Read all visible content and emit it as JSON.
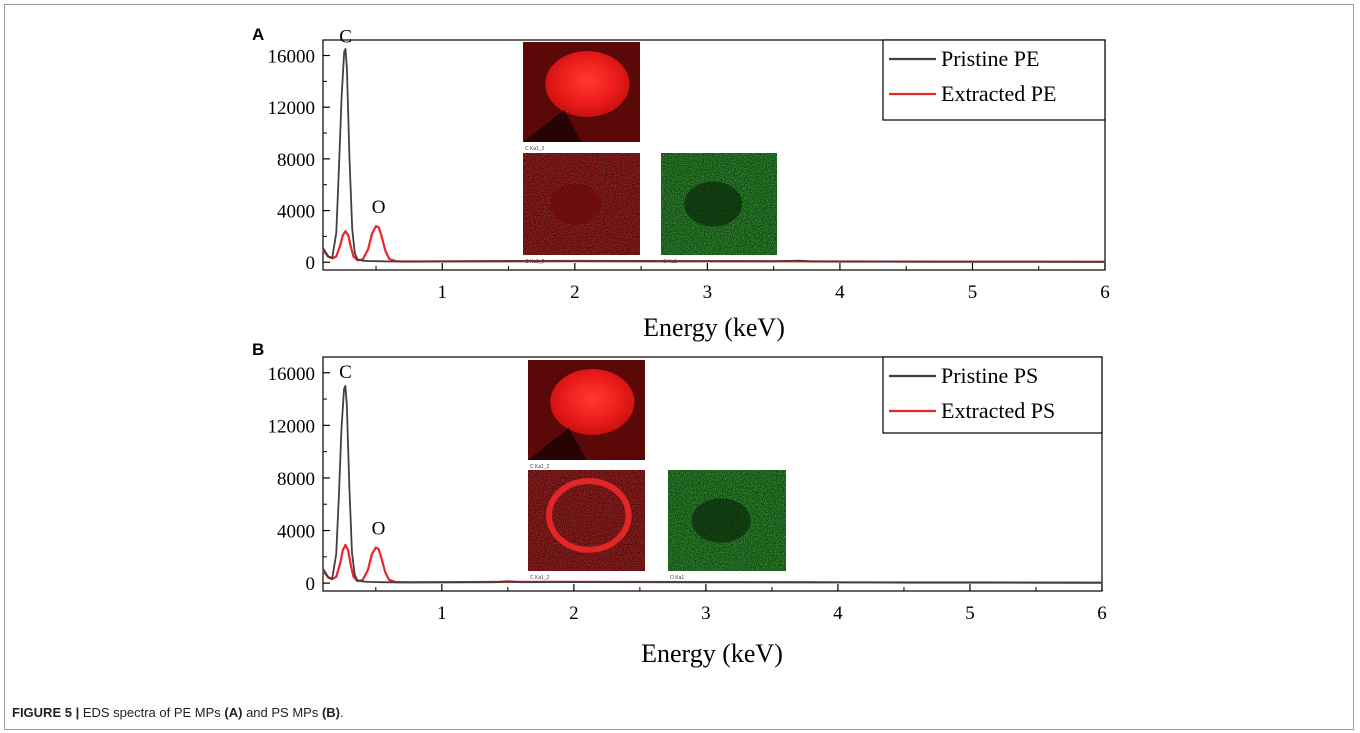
{
  "figure": {
    "caption_lead": "FIGURE 5 |",
    "caption_text_1": " EDS spectra of PE MPs ",
    "caption_a": "(A)",
    "caption_text_2": " and PS MPs ",
    "caption_b": "(B)",
    "caption_text_3": "."
  },
  "colors": {
    "pristine": "#404040",
    "extracted": "#e8252a"
  },
  "chart_data": [
    {
      "type": "line",
      "panel_label": "A",
      "xlabel": "Energy (keV)",
      "ylabel": "",
      "xlim": [
        0.1,
        6
      ],
      "ylim": [
        -600,
        17200
      ],
      "x_ticks": [
        "1",
        "2",
        "3",
        "4",
        "5",
        "6"
      ],
      "y_ticks": [
        "0",
        "4000",
        "8000",
        "12000",
        "16000"
      ],
      "peak_labels": [
        {
          "text": "C",
          "x": 0.27,
          "y": 17000
        },
        {
          "text": "O",
          "x": 0.52,
          "y": 3800
        }
      ],
      "legend": [
        "Pristine PE",
        "Extracted PE"
      ],
      "legend_position": "top-right",
      "series": [
        {
          "name": "Pristine PE",
          "color": "#404040",
          "x": [
            0.1,
            0.14,
            0.17,
            0.2,
            0.22,
            0.24,
            0.26,
            0.27,
            0.28,
            0.3,
            0.32,
            0.34,
            0.36,
            0.4,
            0.45,
            0.5,
            0.55,
            0.6,
            0.7,
            0.8,
            1.0,
            1.5,
            2.0,
            2.5,
            3.0,
            3.5,
            3.7,
            3.8,
            4.0,
            4.5,
            5.0,
            5.5,
            6.0
          ],
          "y": [
            1100,
            450,
            350,
            2300,
            7200,
            12800,
            16300,
            16500,
            15000,
            8000,
            2600,
            700,
            220,
            120,
            90,
            80,
            70,
            60,
            60,
            60,
            60,
            70,
            80,
            75,
            70,
            70,
            130,
            60,
            55,
            50,
            45,
            40,
            35
          ]
        },
        {
          "name": "Extracted PE",
          "color": "#e8252a",
          "x": [
            0.1,
            0.14,
            0.17,
            0.2,
            0.23,
            0.25,
            0.27,
            0.29,
            0.31,
            0.33,
            0.36,
            0.4,
            0.44,
            0.47,
            0.5,
            0.52,
            0.54,
            0.57,
            0.6,
            0.65,
            0.7,
            0.8,
            1.0,
            1.5,
            2.0,
            2.5,
            3.0,
            3.5,
            4.0,
            4.5,
            5.0,
            5.5,
            6.0
          ],
          "y": [
            950,
            420,
            300,
            450,
            1300,
            2100,
            2400,
            2100,
            1200,
            450,
            150,
            220,
            1000,
            2200,
            2800,
            2700,
            2100,
            900,
            250,
            80,
            60,
            60,
            70,
            90,
            100,
            90,
            80,
            70,
            60,
            50,
            45,
            40,
            35
          ]
        }
      ]
    },
    {
      "type": "line",
      "panel_label": "B",
      "xlabel": "Energy (keV)",
      "ylabel": "",
      "xlim": [
        0.1,
        6
      ],
      "ylim": [
        -600,
        17200
      ],
      "x_ticks": [
        "1",
        "2",
        "3",
        "4",
        "5",
        "6"
      ],
      "y_ticks": [
        "0",
        "4000",
        "8000",
        "12000",
        "16000"
      ],
      "peak_labels": [
        {
          "text": "C",
          "x": 0.27,
          "y": 15600
        },
        {
          "text": "O",
          "x": 0.52,
          "y": 3700
        }
      ],
      "legend": [
        "Pristine PS",
        "Extracted PS"
      ],
      "legend_position": "top-right",
      "series": [
        {
          "name": "Pristine PS",
          "color": "#404040",
          "x": [
            0.1,
            0.14,
            0.17,
            0.2,
            0.22,
            0.24,
            0.26,
            0.27,
            0.28,
            0.3,
            0.32,
            0.34,
            0.36,
            0.4,
            0.45,
            0.5,
            0.55,
            0.6,
            0.7,
            0.8,
            1.0,
            1.4,
            1.5,
            1.6,
            2.0,
            2.5,
            3.0,
            3.5,
            4.0,
            4.5,
            5.0,
            5.5,
            6.0
          ],
          "y": [
            1100,
            450,
            350,
            2200,
            6500,
            11800,
            14800,
            15000,
            13600,
            7200,
            2300,
            650,
            220,
            120,
            90,
            80,
            70,
            60,
            60,
            60,
            60,
            70,
            140,
            70,
            80,
            75,
            70,
            65,
            55,
            50,
            45,
            40,
            35
          ]
        },
        {
          "name": "Extracted PS",
          "color": "#e8252a",
          "x": [
            0.1,
            0.14,
            0.17,
            0.2,
            0.23,
            0.25,
            0.27,
            0.29,
            0.31,
            0.33,
            0.36,
            0.4,
            0.44,
            0.47,
            0.5,
            0.52,
            0.54,
            0.57,
            0.6,
            0.65,
            0.7,
            0.8,
            1.0,
            1.5,
            2.0,
            2.5,
            3.0,
            3.5,
            4.0,
            4.5,
            5.0,
            5.5,
            6.0
          ],
          "y": [
            950,
            420,
            300,
            480,
            1500,
            2500,
            2900,
            2500,
            1400,
            500,
            150,
            220,
            1000,
            2200,
            2700,
            2600,
            2000,
            850,
            250,
            80,
            60,
            60,
            70,
            90,
            95,
            85,
            80,
            70,
            60,
            50,
            45,
            40,
            35
          ]
        }
      ]
    }
  ],
  "insets": [
    {
      "panel": "A",
      "images": [
        {
          "kind": "c-bright",
          "label": "C Ka1_2"
        },
        {
          "kind": "c-dim",
          "label": "C Ka1_2"
        },
        {
          "kind": "o",
          "label": "O Ka1"
        }
      ]
    },
    {
      "panel": "B",
      "images": [
        {
          "kind": "c-bright",
          "label": "C Ka1_2"
        },
        {
          "kind": "c-ring",
          "label": "C Ka1_2"
        },
        {
          "kind": "o",
          "label": "O Ka1"
        }
      ]
    }
  ]
}
